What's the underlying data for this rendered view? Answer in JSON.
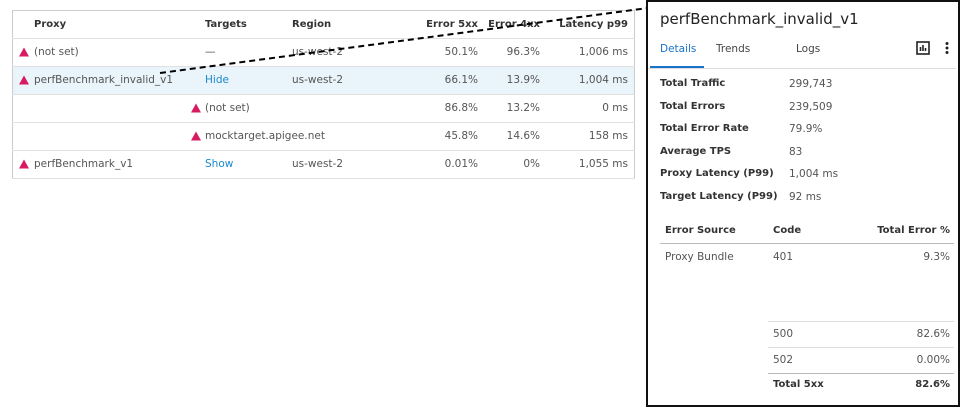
{
  "table": {
    "headers": {
      "proxy": "Proxy",
      "targets": "Targets",
      "region": "Region",
      "error_5xx": "Error 5xx",
      "error_4xx": "Error 4xx",
      "latency": "Latency p99"
    },
    "rows": [
      {
        "proxy": "(not set)",
        "targets": "—",
        "region": "us-west-2",
        "error_5xx": "50.1%",
        "error_4xx": "96.3%",
        "latency": "1,006 ms"
      },
      {
        "proxy": "perfBenchmark_invalid_v1",
        "targets": "Hide",
        "region": "us-west-2",
        "error_5xx": "66.1%",
        "error_4xx": "13.9%",
        "latency": "1,004 ms",
        "sub_rows": [
          {
            "targets": "(not set)",
            "error_5xx": "86.8%",
            "error_4xx": "13.2%",
            "latency": "0 ms"
          },
          {
            "targets": "mocktarget.apigee.net",
            "error_5xx": "45.8%",
            "error_4xx": "14.6%",
            "latency": "158 ms"
          }
        ]
      },
      {
        "proxy": "perfBenchmark_v1",
        "targets": "Show",
        "region": "us-west-2",
        "error_5xx": "0.01%",
        "error_4xx": "0%",
        "latency": "1,055 ms"
      }
    ]
  },
  "panel": {
    "title": "perfBenchmark_invalid_v1",
    "tabs": [
      "Details",
      "Trends",
      "Logs"
    ],
    "stats": [
      {
        "label": "Total Traffic",
        "value": "299,743"
      },
      {
        "label": "Total Errors",
        "value": "239,509"
      },
      {
        "label": "Total Error Rate",
        "value": "79.9%"
      },
      {
        "label": "Average TPS",
        "value": "83"
      },
      {
        "label": "Proxy Latency (P99)",
        "value": "1,004 ms"
      },
      {
        "label": "Target Latency (P99)",
        "value": "92 ms"
      }
    ],
    "errors": {
      "headers": {
        "source": "Error Source",
        "code": "Code",
        "percent": "Total Error %"
      },
      "rows": [
        {
          "source": "Proxy Bundle",
          "code": "401",
          "percent": "9.3%"
        },
        {
          "code": "500",
          "percent": "82.6%"
        },
        {
          "code": "502",
          "percent": "0.00%"
        }
      ],
      "total": {
        "label": "Total 5xx",
        "percent": "82.6%"
      }
    }
  }
}
